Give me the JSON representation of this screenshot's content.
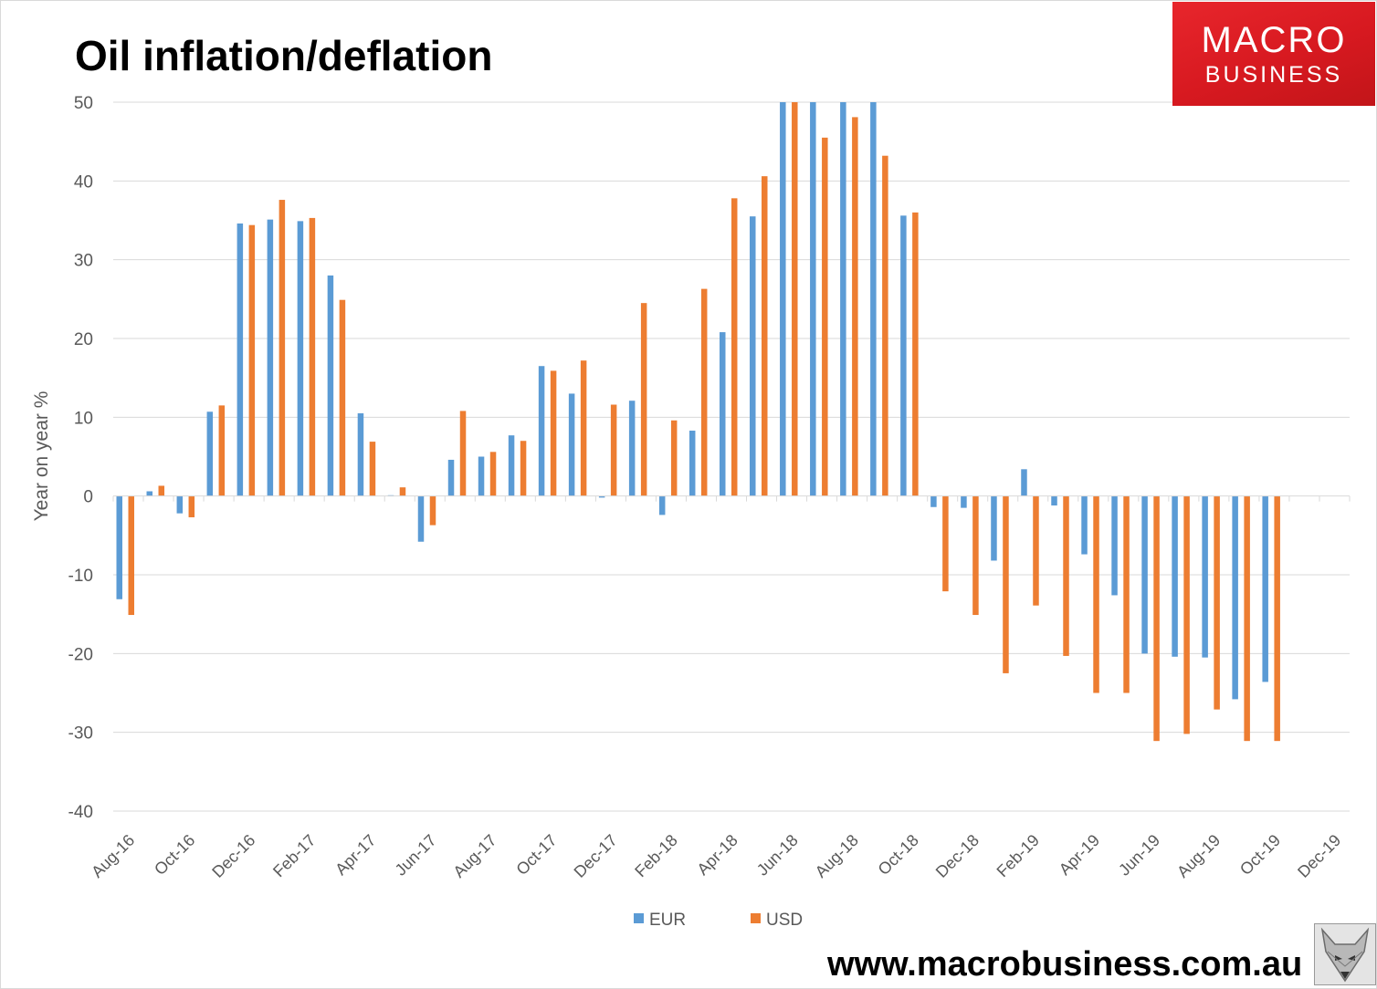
{
  "header": {
    "title": "Oil inflation/deflation",
    "logo_line1": "MACRO",
    "logo_line2": "BUSINESS"
  },
  "footer": {
    "url": "www.macrobusiness.com.au"
  },
  "chart_data": {
    "type": "bar",
    "title": "Oil inflation/deflation",
    "ylabel": "Year on year %",
    "xlabel": "",
    "ylim": [
      -40,
      50
    ],
    "yticks": [
      50,
      40,
      30,
      20,
      10,
      0,
      -10,
      -20,
      -30,
      -40
    ],
    "grid": true,
    "legend_position": "bottom",
    "categories": [
      "Aug-16",
      "Sep-16",
      "Oct-16",
      "Nov-16",
      "Dec-16",
      "Jan-17",
      "Feb-17",
      "Mar-17",
      "Apr-17",
      "May-17",
      "Jun-17",
      "Jul-17",
      "Aug-17",
      "Sep-17",
      "Oct-17",
      "Nov-17",
      "Dec-17",
      "Jan-18",
      "Feb-18",
      "Mar-18",
      "Apr-18",
      "May-18",
      "Jun-18",
      "Jul-18",
      "Aug-18",
      "Sep-18",
      "Oct-18",
      "Nov-18",
      "Dec-18",
      "Jan-19",
      "Feb-19",
      "Mar-19",
      "Apr-19",
      "May-19",
      "Jun-19",
      "Jul-19",
      "Aug-19",
      "Sep-19",
      "Oct-19",
      "Nov-19",
      "Dec-19"
    ],
    "tick_labels": [
      "Aug-16",
      "",
      "Oct-16",
      "",
      "Dec-16",
      "",
      "Feb-17",
      "",
      "Apr-17",
      "",
      "Jun-17",
      "",
      "Aug-17",
      "",
      "Oct-17",
      "",
      "Dec-17",
      "",
      "Feb-18",
      "",
      "Apr-18",
      "",
      "Jun-18",
      "",
      "Aug-18",
      "",
      "Oct-18",
      "",
      "Dec-18",
      "",
      "Feb-19",
      "",
      "Apr-19",
      "",
      "Jun-19",
      "",
      "Aug-19",
      "",
      "Oct-19",
      "",
      "Dec-19"
    ],
    "series": [
      {
        "name": "EUR",
        "color": "#5b9bd5",
        "values": [
          -13.1,
          0.6,
          -2.2,
          10.7,
          34.6,
          35.1,
          34.9,
          28.0,
          10.5,
          0.1,
          -5.8,
          4.6,
          5.0,
          7.7,
          16.5,
          13.0,
          -0.2,
          12.1,
          -2.4,
          8.3,
          20.8,
          35.5,
          50,
          50,
          50,
          50,
          35.6,
          -1.4,
          -1.5,
          -8.2,
          3.4,
          -1.2,
          -7.4,
          -12.6,
          -20.0,
          -20.4,
          -20.5,
          -25.8,
          -23.6,
          null,
          null
        ]
      },
      {
        "name": "USD",
        "color": "#ed7d31",
        "values": [
          -15.1,
          1.3,
          -2.7,
          11.5,
          34.4,
          37.6,
          35.3,
          24.9,
          6.9,
          1.1,
          -3.7,
          10.8,
          5.6,
          7.0,
          15.9,
          17.2,
          11.6,
          24.5,
          9.6,
          26.3,
          37.8,
          40.6,
          50,
          45.5,
          48.1,
          43.2,
          36.0,
          -12.1,
          -15.1,
          -22.5,
          -13.9,
          -20.3,
          -25.0,
          -25.0,
          -31.1,
          -30.2,
          -27.1,
          -31.1,
          -31.1,
          null,
          null
        ]
      }
    ]
  }
}
